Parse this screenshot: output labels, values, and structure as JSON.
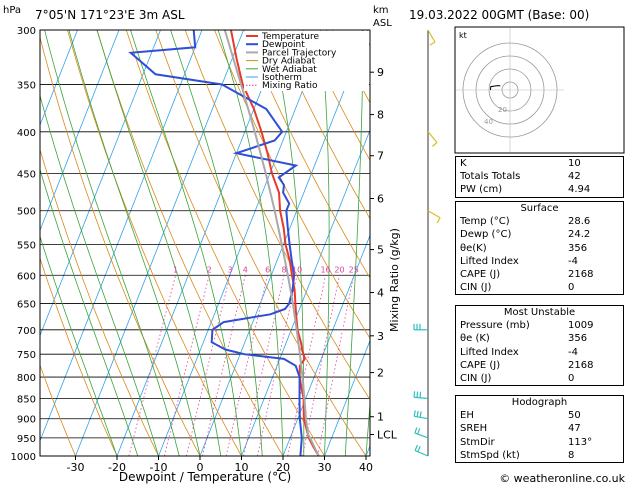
{
  "header": {
    "pressure_unit": "hPa",
    "location": "7°05'N  171°23'E  3m  ASL",
    "height_unit_km": "km",
    "height_unit_asl": "ASL",
    "datetime": "19.03.2022  00GMT  (Base: 00)"
  },
  "footer": {
    "credit": "© weatheronline.co.uk"
  },
  "chart_data": {
    "type": "line",
    "title": "",
    "xlabel": "Dewpoint / Temperature (°C)",
    "ylabel": "hPa",
    "right_axis_label": "Mixing Ratio (g/kg)",
    "pressure_levels": [
      300,
      350,
      400,
      450,
      500,
      550,
      600,
      650,
      700,
      750,
      800,
      850,
      900,
      950,
      1000
    ],
    "temperature_ticks": [
      -30,
      -20,
      -10,
      0,
      10,
      20,
      30,
      40
    ],
    "height_ticks_km": [
      {
        "label": "9",
        "p": 338
      },
      {
        "label": "8",
        "p": 381
      },
      {
        "label": "7",
        "p": 428
      },
      {
        "label": "6",
        "p": 483
      },
      {
        "label": "5",
        "p": 558
      },
      {
        "label": "4",
        "p": 630
      },
      {
        "label": "3",
        "p": 712
      },
      {
        "label": "2",
        "p": 790
      },
      {
        "label": "1",
        "p": 895
      },
      {
        "label": "LCL",
        "p": 941
      }
    ],
    "mixing_ratio_labels": [
      "1",
      "2",
      "3",
      "4",
      "6",
      "8",
      "10",
      "16",
      "20",
      "25"
    ],
    "legend": [
      "Temperature",
      "Dewpoint",
      "Parcel Trajectory",
      "Dry Adiabat",
      "Wet Adiabat",
      "Isotherm",
      "Mixing Ratio"
    ],
    "colors": {
      "temperature": "#e83a2a",
      "dewpoint": "#2f4fd6",
      "parcel": "#a9a9a9",
      "dry_adiabat": "#d98a1a",
      "wet_adiabat": "#3aa33a",
      "isotherm": "#30a3e8",
      "mixing_ratio": "#e040a0",
      "wind_barb": "#30c0c0",
      "wind_barb_upper": "#d4c020"
    },
    "series": [
      {
        "name": "Temperature",
        "points": [
          [
            1000,
            28.6
          ],
          [
            975,
            26.5
          ],
          [
            950,
            24.5
          ],
          [
            925,
            23.0
          ],
          [
            900,
            21.5
          ],
          [
            875,
            20.5
          ],
          [
            850,
            19.5
          ],
          [
            825,
            18.0
          ],
          [
            800,
            16.5
          ],
          [
            775,
            15.5
          ],
          [
            760,
            16.0
          ],
          [
            740,
            14.5
          ],
          [
            725,
            13.5
          ],
          [
            700,
            11.5
          ],
          [
            675,
            10.0
          ],
          [
            650,
            8.5
          ],
          [
            625,
            7.0
          ],
          [
            600,
            5.0
          ],
          [
            575,
            3.0
          ],
          [
            550,
            0.5
          ],
          [
            525,
            -1.5
          ],
          [
            500,
            -4.0
          ],
          [
            475,
            -6.0
          ],
          [
            450,
            -9.5
          ],
          [
            425,
            -12.5
          ],
          [
            400,
            -16.0
          ],
          [
            375,
            -20.0
          ],
          [
            350,
            -25.0
          ],
          [
            325,
            -29.0
          ],
          [
            300,
            -33.0
          ]
        ]
      },
      {
        "name": "Dewpoint",
        "points": [
          [
            1000,
            24.2
          ],
          [
            950,
            22.8
          ],
          [
            900,
            20.5
          ],
          [
            850,
            18.5
          ],
          [
            800,
            16.5
          ],
          [
            775,
            14.5
          ],
          [
            760,
            11.0
          ],
          [
            750,
            1.0
          ],
          [
            740,
            -4.0
          ],
          [
            725,
            -8.0
          ],
          [
            700,
            -9.0
          ],
          [
            685,
            -7.0
          ],
          [
            670,
            3.5
          ],
          [
            660,
            6.5
          ],
          [
            650,
            7.0
          ],
          [
            625,
            6.5
          ],
          [
            600,
            5.5
          ],
          [
            575,
            3.5
          ],
          [
            550,
            1.5
          ],
          [
            525,
            -0.5
          ],
          [
            500,
            -2.5
          ],
          [
            490,
            -2.5
          ],
          [
            475,
            -5.0
          ],
          [
            465,
            -5.5
          ],
          [
            455,
            -7.5
          ],
          [
            440,
            -4.5
          ],
          [
            425,
            -20.0
          ],
          [
            410,
            -12.0
          ],
          [
            400,
            -11.0
          ],
          [
            375,
            -17.0
          ],
          [
            350,
            -30.0
          ],
          [
            340,
            -47.0
          ],
          [
            320,
            -55.0
          ],
          [
            315,
            -40.0
          ],
          [
            300,
            -42.0
          ]
        ]
      },
      {
        "name": "Parcel Trajectory",
        "points": [
          [
            1000,
            28.6
          ],
          [
            950,
            24.8
          ],
          [
            941,
            24.0
          ],
          [
            900,
            22.0
          ],
          [
            850,
            19.7
          ],
          [
            800,
            17.2
          ],
          [
            750,
            14.4
          ],
          [
            700,
            11.3
          ],
          [
            650,
            7.9
          ],
          [
            600,
            4.0
          ],
          [
            550,
            -0.4
          ],
          [
            500,
            -5.3
          ],
          [
            450,
            -11.0
          ],
          [
            400,
            -17.6
          ],
          [
            350,
            -25.4
          ],
          [
            300,
            -34.5
          ]
        ]
      }
    ],
    "wind_barbs": [
      {
        "p": 1000,
        "dir": 113,
        "speed_kt": 8
      },
      {
        "p": 950,
        "dir": 110,
        "speed_kt": 10
      },
      {
        "p": 900,
        "dir": 100,
        "speed_kt": 15
      },
      {
        "p": 850,
        "dir": 95,
        "speed_kt": 15
      },
      {
        "p": 700,
        "dir": 90,
        "speed_kt": 15
      },
      {
        "p": 500,
        "dir": 300,
        "speed_kt": 5
      },
      {
        "p": 400,
        "dir": 320,
        "speed_kt": 5
      },
      {
        "p": 300,
        "dir": 330,
        "speed_kt": 5
      }
    ],
    "hodograph": {
      "unit": "kt",
      "rings": [
        10,
        20,
        30,
        40
      ],
      "ring_labels": [
        "20",
        "40"
      ]
    }
  },
  "indices": [
    {
      "label": "K",
      "value": "10"
    },
    {
      "label": "Totals Totals",
      "value": "42"
    },
    {
      "label": "PW (cm)",
      "value": "4.94"
    }
  ],
  "surface": {
    "title": "Surface",
    "rows": [
      {
        "label": "Temp (°C)",
        "value": "28.6"
      },
      {
        "label": "Dewp (°C)",
        "value": "24.2"
      },
      {
        "label": "θe(K)",
        "value": "356"
      },
      {
        "label": "Lifted Index",
        "value": "-4"
      },
      {
        "label": "CAPE (J)",
        "value": "2168"
      },
      {
        "label": "CIN (J)",
        "value": "0"
      }
    ]
  },
  "most_unstable": {
    "title": "Most Unstable",
    "rows": [
      {
        "label": "Pressure (mb)",
        "value": "1009"
      },
      {
        "label": "θe (K)",
        "value": "356"
      },
      {
        "label": "Lifted Index",
        "value": "-4"
      },
      {
        "label": "CAPE (J)",
        "value": "2168"
      },
      {
        "label": "CIN (J)",
        "value": "0"
      }
    ]
  },
  "hodograph_table": {
    "title": "Hodograph",
    "rows": [
      {
        "label": "EH",
        "value": "50"
      },
      {
        "label": "SREH",
        "value": "47"
      },
      {
        "label": "StmDir",
        "value": "113°"
      },
      {
        "label": "StmSpd (kt)",
        "value": "8"
      }
    ]
  }
}
